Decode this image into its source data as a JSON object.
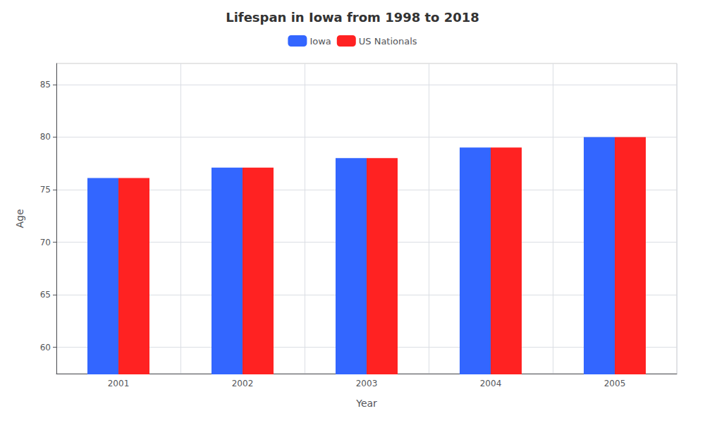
{
  "chart_data": {
    "type": "bar",
    "title": "Lifespan in Iowa from 1998 to 2018",
    "x_label": "Year",
    "y_label": "Age",
    "categories": [
      "2001",
      "2002",
      "2003",
      "2004",
      "2005"
    ],
    "series": [
      {
        "name": "Iowa",
        "color": "#3366ff",
        "values": [
          76.1,
          77.1,
          78.0,
          79.0,
          80.0
        ]
      },
      {
        "name": "US Nationals",
        "color": "#ff2222",
        "values": [
          76.1,
          77.1,
          78.0,
          79.0,
          80.0
        ]
      }
    ],
    "ylim": [
      57.5,
      87
    ],
    "yticks": [
      60,
      65,
      70,
      75,
      80,
      85
    ],
    "grid": true,
    "legend": "top"
  }
}
